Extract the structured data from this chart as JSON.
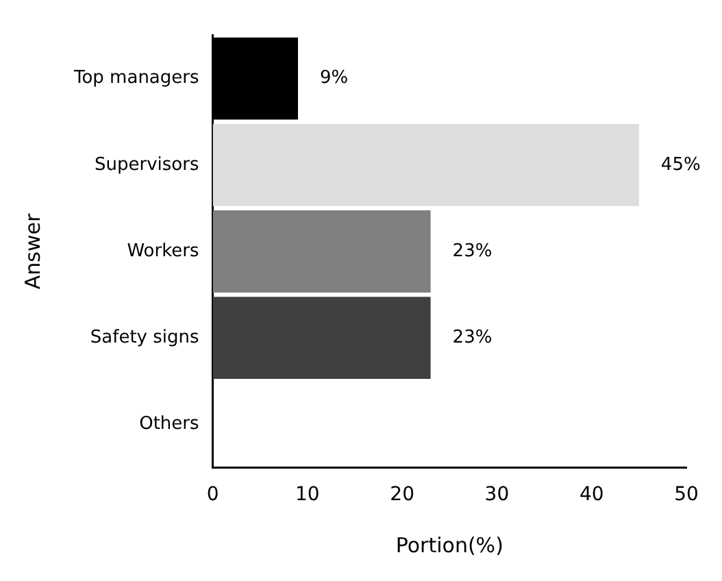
{
  "chart_data": {
    "type": "bar",
    "orientation": "horizontal",
    "xlabel": "Portion(%)",
    "ylabel": "Answer",
    "categories": [
      "Top managers",
      "Supervisors",
      "Workers",
      "Safety signs",
      "Others"
    ],
    "values": [
      9,
      45,
      23,
      23,
      0
    ],
    "colors": [
      "#000000",
      "#dddddd",
      "#808080",
      "#404040",
      "#404040"
    ],
    "value_labels": [
      "9%",
      "45%",
      "23%",
      "23%",
      null
    ],
    "xlim": [
      0,
      50
    ],
    "xticks": [
      0,
      10,
      20,
      30,
      40,
      50
    ],
    "grid": false,
    "legend": false
  }
}
